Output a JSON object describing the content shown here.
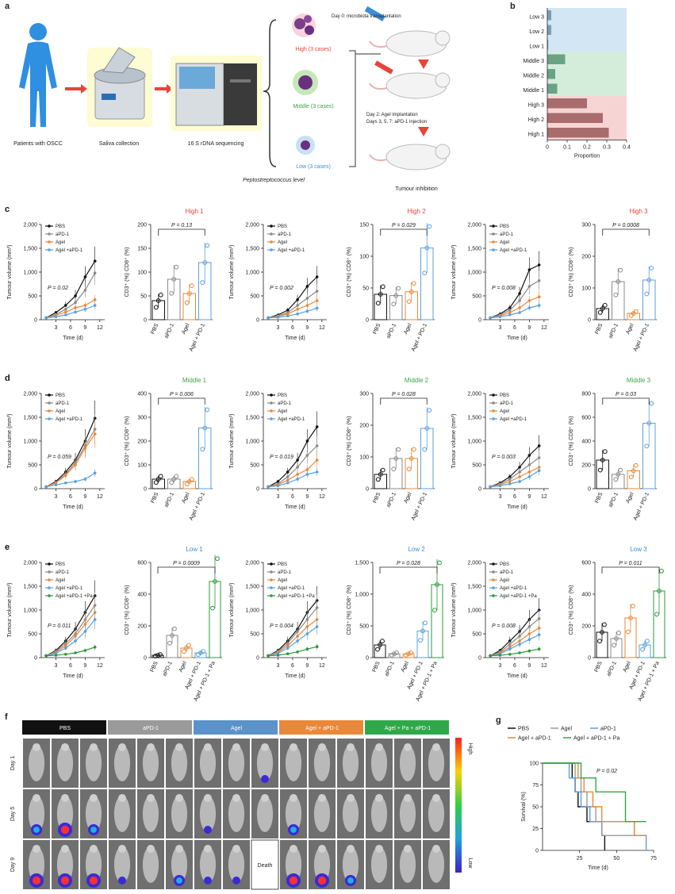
{
  "panel_letters": {
    "a": "a",
    "b": "b",
    "c": "c",
    "d": "d",
    "e": "e",
    "f": "f",
    "g": "g"
  },
  "workflow": {
    "patients": "Patients with OSCC",
    "saliva": "Saliva collection",
    "sequencing": "16 S rDNA sequencing",
    "high": "High (3 cases)",
    "middle": "Middle (3 cases)",
    "low": "Low (3 cases)",
    "level_label": "Peptostreptococcus level",
    "day0": "Day 0: microbiota transplantation",
    "day2": "Day 2: Agel implantation",
    "days357": "Days 3, 5, 7: aPD-1 injection",
    "tumour_inhibition": "Tumour inhibition",
    "colors": {
      "high": "#e8443a",
      "middle": "#3aa843",
      "low": "#3d8fd6"
    }
  },
  "panel_b": {
    "chart_data": {
      "type": "bar",
      "orientation": "horizontal",
      "categories": [
        "Low 3",
        "Low 2",
        "Low 1",
        "Middle 3",
        "Middle 2",
        "Middle 1",
        "High 3",
        "High 2",
        "High 1"
      ],
      "values": [
        0.02,
        0.02,
        0.005,
        0.09,
        0.04,
        0.05,
        0.2,
        0.28,
        0.31
      ],
      "xlabel": "Proportion",
      "xlim": [
        0,
        0.4
      ],
      "xticks": [
        "0",
        "0.1",
        "0.2",
        "0.3",
        "0.4"
      ],
      "bands": {
        "low": "#d3e6f3",
        "middle": "#d4eddb",
        "high": "#f7d4d4"
      },
      "bar_colors": {
        "low": "#7a9fb3",
        "middle": "#6aa384",
        "high": "#a86c6c"
      }
    }
  },
  "series_names": {
    "pbs": "PBS",
    "apd1": "aPD-1",
    "agel": "Agel",
    "agel_apd1": "Agel +aPD-1",
    "agel_apd1_pa": "Agel +aPD-1 +Pa"
  },
  "series_colors": {
    "pbs": "#111111",
    "apd1": "#8a8a8a",
    "agel": "#e8883a",
    "agel_apd1": "#5aa0e0",
    "agel_apd1_pa": "#2a9a3a"
  },
  "bar_categories_3": [
    "PBS",
    "aPD-1",
    "Agel",
    "Agel + PD-1"
  ],
  "bar_categories_4": [
    "PBS",
    "aPD-1",
    "Agel",
    "Agel + PD-1",
    "Agel + PD-1 + Pa"
  ],
  "growth_axis": {
    "ylabel": "Tumour volume (mm³)",
    "xlabel": "Time (d)",
    "yticks": [
      "0",
      "500",
      "1,000",
      "1,500",
      "2,000"
    ],
    "xticks": [
      "3",
      "6",
      "9",
      "12"
    ]
  },
  "cd_ylabel": "CD3⁺ (%) CD8⁺ (%)",
  "rows": [
    {
      "letter": "c",
      "color": "#e8443a",
      "groups": [
        {
          "title": "High 1",
          "growth_p": "P = 0.02",
          "bar_p": "P = 0.13",
          "bar_yticks": [
            "0",
            "50",
            "100",
            "150",
            "200"
          ],
          "chart_data": {
            "type": "line+bar",
            "x": [
              1,
              3,
              5,
              7,
              9,
              11
            ],
            "growth": {
              "pbs": [
                40,
                150,
                300,
                500,
                900,
                1230
              ],
              "apd1": [
                40,
                110,
                220,
                360,
                620,
                980
              ],
              "agel": [
                40,
                90,
                160,
                250,
                300,
                420
              ],
              "agel_apd1": [
                40,
                60,
                100,
                160,
                220,
                300
              ]
            },
            "growth_ylim": [
              0,
              2000
            ],
            "bars": [
              40,
              85,
              55,
              120
            ],
            "bars_ylim": [
              0,
              200
            ]
          }
        },
        {
          "title": "High 2",
          "growth_p": "P = 0.002",
          "bar_p": "P = 0.029",
          "bar_yticks": [
            "0",
            "50",
            "100",
            "150"
          ],
          "chart_data": {
            "type": "line+bar",
            "x": [
              1,
              3,
              5,
              7,
              9,
              11
            ],
            "growth": {
              "pbs": [
                40,
                100,
                200,
                420,
                700,
                900
              ],
              "apd1": [
                40,
                80,
                150,
                300,
                450,
                600
              ],
              "agel": [
                40,
                70,
                120,
                220,
                300,
                400
              ],
              "agel_apd1": [
                40,
                50,
                80,
                120,
                180,
                240
              ]
            },
            "growth_ylim": [
              0,
              2000
            ],
            "bars": [
              40,
              38,
              44,
              113
            ],
            "bars_ylim": [
              0,
              150
            ]
          }
        },
        {
          "title": "High 3",
          "growth_p": "P = 0.008",
          "bar_p": "P = 0.0008",
          "bar_yticks": [
            "0",
            "100",
            "200",
            "300"
          ],
          "chart_data": {
            "type": "line+bar",
            "x": [
              1,
              3,
              5,
              7,
              9,
              11
            ],
            "growth": {
              "pbs": [
                40,
                120,
                250,
                550,
                1050,
                1150
              ],
              "apd1": [
                40,
                100,
                200,
                400,
                700,
                820
              ],
              "agel": [
                40,
                80,
                150,
                250,
                400,
                480
              ],
              "agel_apd1": [
                40,
                60,
                100,
                150,
                250,
                300
              ]
            },
            "growth_ylim": [
              0,
              2000
            ],
            "bars": [
              35,
              120,
              20,
              125
            ],
            "bars_ylim": [
              0,
              300
            ]
          }
        }
      ]
    },
    {
      "letter": "d",
      "color": "#3aa843",
      "groups": [
        {
          "title": "Middle 1",
          "growth_p": "P = 0.059",
          "bar_p": "P = 0.006",
          "bar_yticks": [
            "0",
            "100",
            "200",
            "300",
            "400"
          ],
          "chart_data": {
            "type": "line+bar",
            "x": [
              1,
              3,
              5,
              7,
              9,
              11
            ],
            "growth": {
              "pbs": [
                40,
                150,
                350,
                600,
                1000,
                1480
              ],
              "apd1": [
                40,
                130,
                300,
                550,
                900,
                1250
              ],
              "agel": [
                40,
                120,
                280,
                500,
                850,
                1150
              ],
              "agel_apd1": [
                40,
                80,
                120,
                150,
                200,
                330
              ]
            },
            "growth_ylim": [
              0,
              2000
            ],
            "bars": [
              40,
              40,
              30,
              255
            ],
            "bars_ylim": [
              0,
              400
            ]
          }
        },
        {
          "title": "Middle 2",
          "growth_p": "P = 0.019",
          "bar_p": "P = 0.028",
          "bar_yticks": [
            "0",
            "100",
            "200",
            "300"
          ],
          "chart_data": {
            "type": "line+bar",
            "x": [
              1,
              3,
              5,
              7,
              9,
              11
            ],
            "growth": {
              "pbs": [
                40,
                150,
                350,
                600,
                1000,
                1300
              ],
              "apd1": [
                40,
                100,
                250,
                450,
                700,
                900
              ],
              "agel": [
                40,
                80,
                180,
                300,
                400,
                600
              ],
              "agel_apd1": [
                40,
                60,
                120,
                200,
                300,
                350
              ]
            },
            "growth_ylim": [
              0,
              2000
            ],
            "bars": [
              45,
              95,
              95,
              190
            ],
            "bars_ylim": [
              0,
              300
            ]
          }
        },
        {
          "title": "Middle 3",
          "growth_p": "P = 0.003",
          "bar_p": "P = 0.03",
          "bar_yticks": [
            "0",
            "200",
            "400",
            "600",
            "800"
          ],
          "chart_data": {
            "type": "line+bar",
            "x": [
              1,
              3,
              5,
              7,
              9,
              11
            ],
            "growth": {
              "pbs": [
                40,
                120,
                250,
                450,
                700,
                900
              ],
              "apd1": [
                40,
                100,
                200,
                350,
                500,
                650
              ],
              "agel": [
                40,
                80,
                150,
                250,
                350,
                450
              ],
              "agel_apd1": [
                40,
                60,
                100,
                150,
                250,
                380
              ]
            },
            "growth_ylim": [
              0,
              2000
            ],
            "bars": [
              240,
              120,
              150,
              550
            ],
            "bars_ylim": [
              0,
              800
            ]
          }
        }
      ]
    },
    {
      "letter": "e",
      "color": "#3d8fd6",
      "groups": [
        {
          "title": "Low 1",
          "growth_p": "P = 0.011",
          "bar_p": "P = 0.0009",
          "bar_yticks": [
            "0",
            "200",
            "400",
            "600"
          ],
          "chart_data": {
            "type": "line+bar",
            "x": [
              1,
              3,
              5,
              7,
              9,
              11
            ],
            "growth": {
              "pbs": [
                40,
                150,
                350,
                600,
                950,
                1300
              ],
              "apd1": [
                40,
                130,
                300,
                500,
                800,
                1100
              ],
              "agel": [
                40,
                110,
                250,
                450,
                700,
                950
              ],
              "agel_apd1": [
                40,
                90,
                200,
                350,
                550,
                800
              ],
              "agel_apd1_pa": [
                40,
                50,
                70,
                100,
                150,
                220
              ]
            },
            "growth_ylim": [
              0,
              2000
            ],
            "bars": [
              15,
              140,
              60,
              30,
              480
            ],
            "bars_ylim": [
              0,
              600
            ]
          }
        },
        {
          "title": "Low 2",
          "growth_p": "P = 0.004",
          "bar_p": "P = 0.028",
          "bar_yticks": [
            "0",
            "500",
            "1,000",
            "1,500"
          ],
          "chart_data": {
            "type": "line+bar",
            "x": [
              1,
              3,
              5,
              7,
              9,
              11
            ],
            "growth": {
              "pbs": [
                40,
                150,
                350,
                600,
                950,
                1200
              ],
              "apd1": [
                40,
                130,
                300,
                550,
                800,
                1050
              ],
              "agel": [
                40,
                110,
                250,
                450,
                650,
                800
              ],
              "agel_apd1": [
                40,
                90,
                200,
                350,
                500,
                650
              ],
              "agel_apd1_pa": [
                40,
                50,
                80,
                120,
                180,
                230
              ]
            },
            "growth_ylim": [
              0,
              2000
            ],
            "bars": [
              200,
              60,
              60,
              420,
              1150
            ],
            "bars_ylim": [
              0,
              1500
            ]
          }
        },
        {
          "title": "Low 3",
          "growth_p": "P = 0.008",
          "bar_p": "P = 0.011",
          "bar_yticks": [
            "0",
            "200",
            "400",
            "600"
          ],
          "chart_data": {
            "type": "line+bar",
            "x": [
              1,
              3,
              5,
              7,
              9,
              11
            ],
            "growth": {
              "pbs": [
                40,
                150,
                350,
                550,
                800,
                1000
              ],
              "apd1": [
                40,
                120,
                280,
                450,
                650,
                820
              ],
              "agel": [
                40,
                100,
                220,
                350,
                500,
                620
              ],
              "agel_apd1": [
                40,
                80,
                180,
                280,
                380,
                480
              ],
              "agel_apd1_pa": [
                40,
                50,
                70,
                100,
                140,
                180
              ]
            },
            "growth_ylim": [
              0,
              2000
            ],
            "bars": [
              160,
              120,
              250,
              80,
              420
            ],
            "bars_ylim": [
              0,
              600
            ]
          }
        }
      ]
    }
  ],
  "panel_f": {
    "groups": [
      {
        "label": "PBS",
        "color": "#111111"
      },
      {
        "label": "aPD-1",
        "color": "#9a9a9a"
      },
      {
        "label": "Agel",
        "color": "#5b92c9"
      },
      {
        "label": "Agel + aPD-1",
        "color": "#e8883a"
      },
      {
        "label": "Agel + Pa + aPD-1",
        "color": "#2fa84a"
      }
    ],
    "days": [
      "Day 1",
      "Day 5",
      "Day 9"
    ],
    "death": "Death",
    "scale_high": "High",
    "scale_low": "Low",
    "signal_strength": [
      [
        0,
        0,
        0,
        0,
        0,
        0,
        0,
        0,
        1,
        0,
        0,
        0,
        0,
        0,
        0
      ],
      [
        2,
        3,
        2,
        0,
        0,
        0,
        1,
        0,
        0,
        2,
        0,
        0,
        0,
        0,
        0
      ],
      [
        3,
        3,
        3,
        1,
        0,
        2,
        1,
        1,
        0,
        3,
        3,
        2,
        0,
        0,
        0
      ]
    ]
  },
  "panel_g": {
    "chart_data": {
      "type": "line",
      "step": true,
      "series": [
        {
          "name": "PBS",
          "key": "pbs",
          "color": "#111111",
          "x": [
            0,
            18,
            20,
            22,
            24,
            30,
            40,
            42
          ],
          "y": [
            100,
            100,
            83,
            67,
            50,
            33,
            17,
            0
          ]
        },
        {
          "name": "Agel",
          "key": "agel",
          "color": "#9a9a9a",
          "x": [
            0,
            18,
            22,
            26,
            30,
            36,
            40,
            70
          ],
          "y": [
            100,
            100,
            83,
            67,
            50,
            33,
            17,
            17
          ]
        },
        {
          "name": "aPD-1",
          "key": "apd1",
          "color": "#5aa0e0",
          "x": [
            0,
            14,
            18,
            22,
            26,
            32,
            62,
            70
          ],
          "y": [
            100,
            100,
            83,
            67,
            50,
            33,
            17,
            0
          ]
        },
        {
          "name": "Agel + aPD-1",
          "key": "agel_apd1",
          "color": "#e8883a",
          "x": [
            0,
            20,
            24,
            28,
            34,
            40,
            62,
            70
          ],
          "y": [
            100,
            100,
            83,
            67,
            50,
            33,
            17,
            17
          ]
        },
        {
          "name": "Agel + aPD-1 + Pa",
          "key": "pa",
          "color": "#2fa84a",
          "x": [
            0,
            22,
            26,
            36,
            52,
            56,
            70
          ],
          "y": [
            100,
            100,
            83,
            67,
            67,
            33,
            33
          ]
        }
      ],
      "p_value": "P = 0.02",
      "xlabel": "Time (d)",
      "ylabel": "Survival (%)",
      "xticks": [
        "25",
        "50",
        "75"
      ],
      "yticks": [
        "0",
        "25",
        "50",
        "75",
        "100"
      ],
      "xlim": [
        0,
        75
      ],
      "ylim": [
        0,
        100
      ]
    }
  }
}
